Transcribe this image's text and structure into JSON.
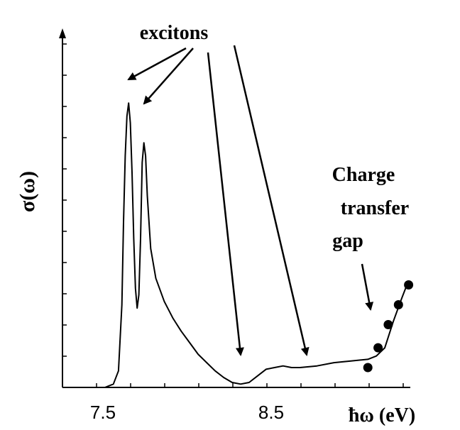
{
  "chart_data": {
    "type": "line",
    "title": "",
    "xlabel": "ħω  (eV)",
    "ylabel": "σ(ω)",
    "xlim": [
      7.2,
      9.25
    ],
    "ylim": [
      0,
      1.0
    ],
    "x_ticks": [
      7.5,
      8.5
    ],
    "x_tick_labels": [
      "7.5",
      "8.5"
    ],
    "grid": false,
    "series": [
      {
        "values_xy": [
          [
            7.2,
            0.0
          ],
          [
            7.45,
            0.0
          ],
          [
            7.5,
            0.01
          ],
          [
            7.53,
            0.05
          ],
          [
            7.55,
            0.25
          ],
          [
            7.56,
            0.5
          ],
          [
            7.57,
            0.7
          ],
          [
            7.58,
            0.82
          ],
          [
            7.59,
            0.86
          ],
          [
            7.6,
            0.8
          ],
          [
            7.61,
            0.65
          ],
          [
            7.62,
            0.45
          ],
          [
            7.63,
            0.3
          ],
          [
            7.64,
            0.24
          ],
          [
            7.65,
            0.28
          ],
          [
            7.66,
            0.45
          ],
          [
            7.67,
            0.68
          ],
          [
            7.68,
            0.74
          ],
          [
            7.69,
            0.7
          ],
          [
            7.7,
            0.58
          ],
          [
            7.72,
            0.42
          ],
          [
            7.75,
            0.33
          ],
          [
            7.8,
            0.26
          ],
          [
            7.85,
            0.21
          ],
          [
            7.9,
            0.17
          ],
          [
            7.95,
            0.135
          ],
          [
            8.0,
            0.1
          ],
          [
            8.05,
            0.075
          ],
          [
            8.1,
            0.05
          ],
          [
            8.15,
            0.03
          ],
          [
            8.2,
            0.015
          ],
          [
            8.25,
            0.01
          ],
          [
            8.3,
            0.015
          ],
          [
            8.35,
            0.035
          ],
          [
            8.4,
            0.055
          ],
          [
            8.45,
            0.06
          ],
          [
            8.5,
            0.065
          ],
          [
            8.55,
            0.06
          ],
          [
            8.6,
            0.06
          ],
          [
            8.7,
            0.065
          ],
          [
            8.8,
            0.075
          ],
          [
            8.9,
            0.08
          ],
          [
            9.0,
            0.085
          ],
          [
            9.05,
            0.095
          ],
          [
            9.1,
            0.12
          ],
          [
            9.15,
            0.2
          ],
          [
            9.2,
            0.27
          ],
          [
            9.23,
            0.31
          ]
        ]
      },
      {
        "type": "scatter",
        "values_xy": [
          [
            9.0,
            0.06
          ],
          [
            9.06,
            0.12
          ],
          [
            9.12,
            0.19
          ],
          [
            9.18,
            0.25
          ],
          [
            9.24,
            0.31
          ]
        ]
      }
    ],
    "annotations": [
      {
        "text": "excitons"
      },
      {
        "text": "Charge"
      },
      {
        "text": "transfer"
      },
      {
        "text": "gap"
      }
    ]
  }
}
